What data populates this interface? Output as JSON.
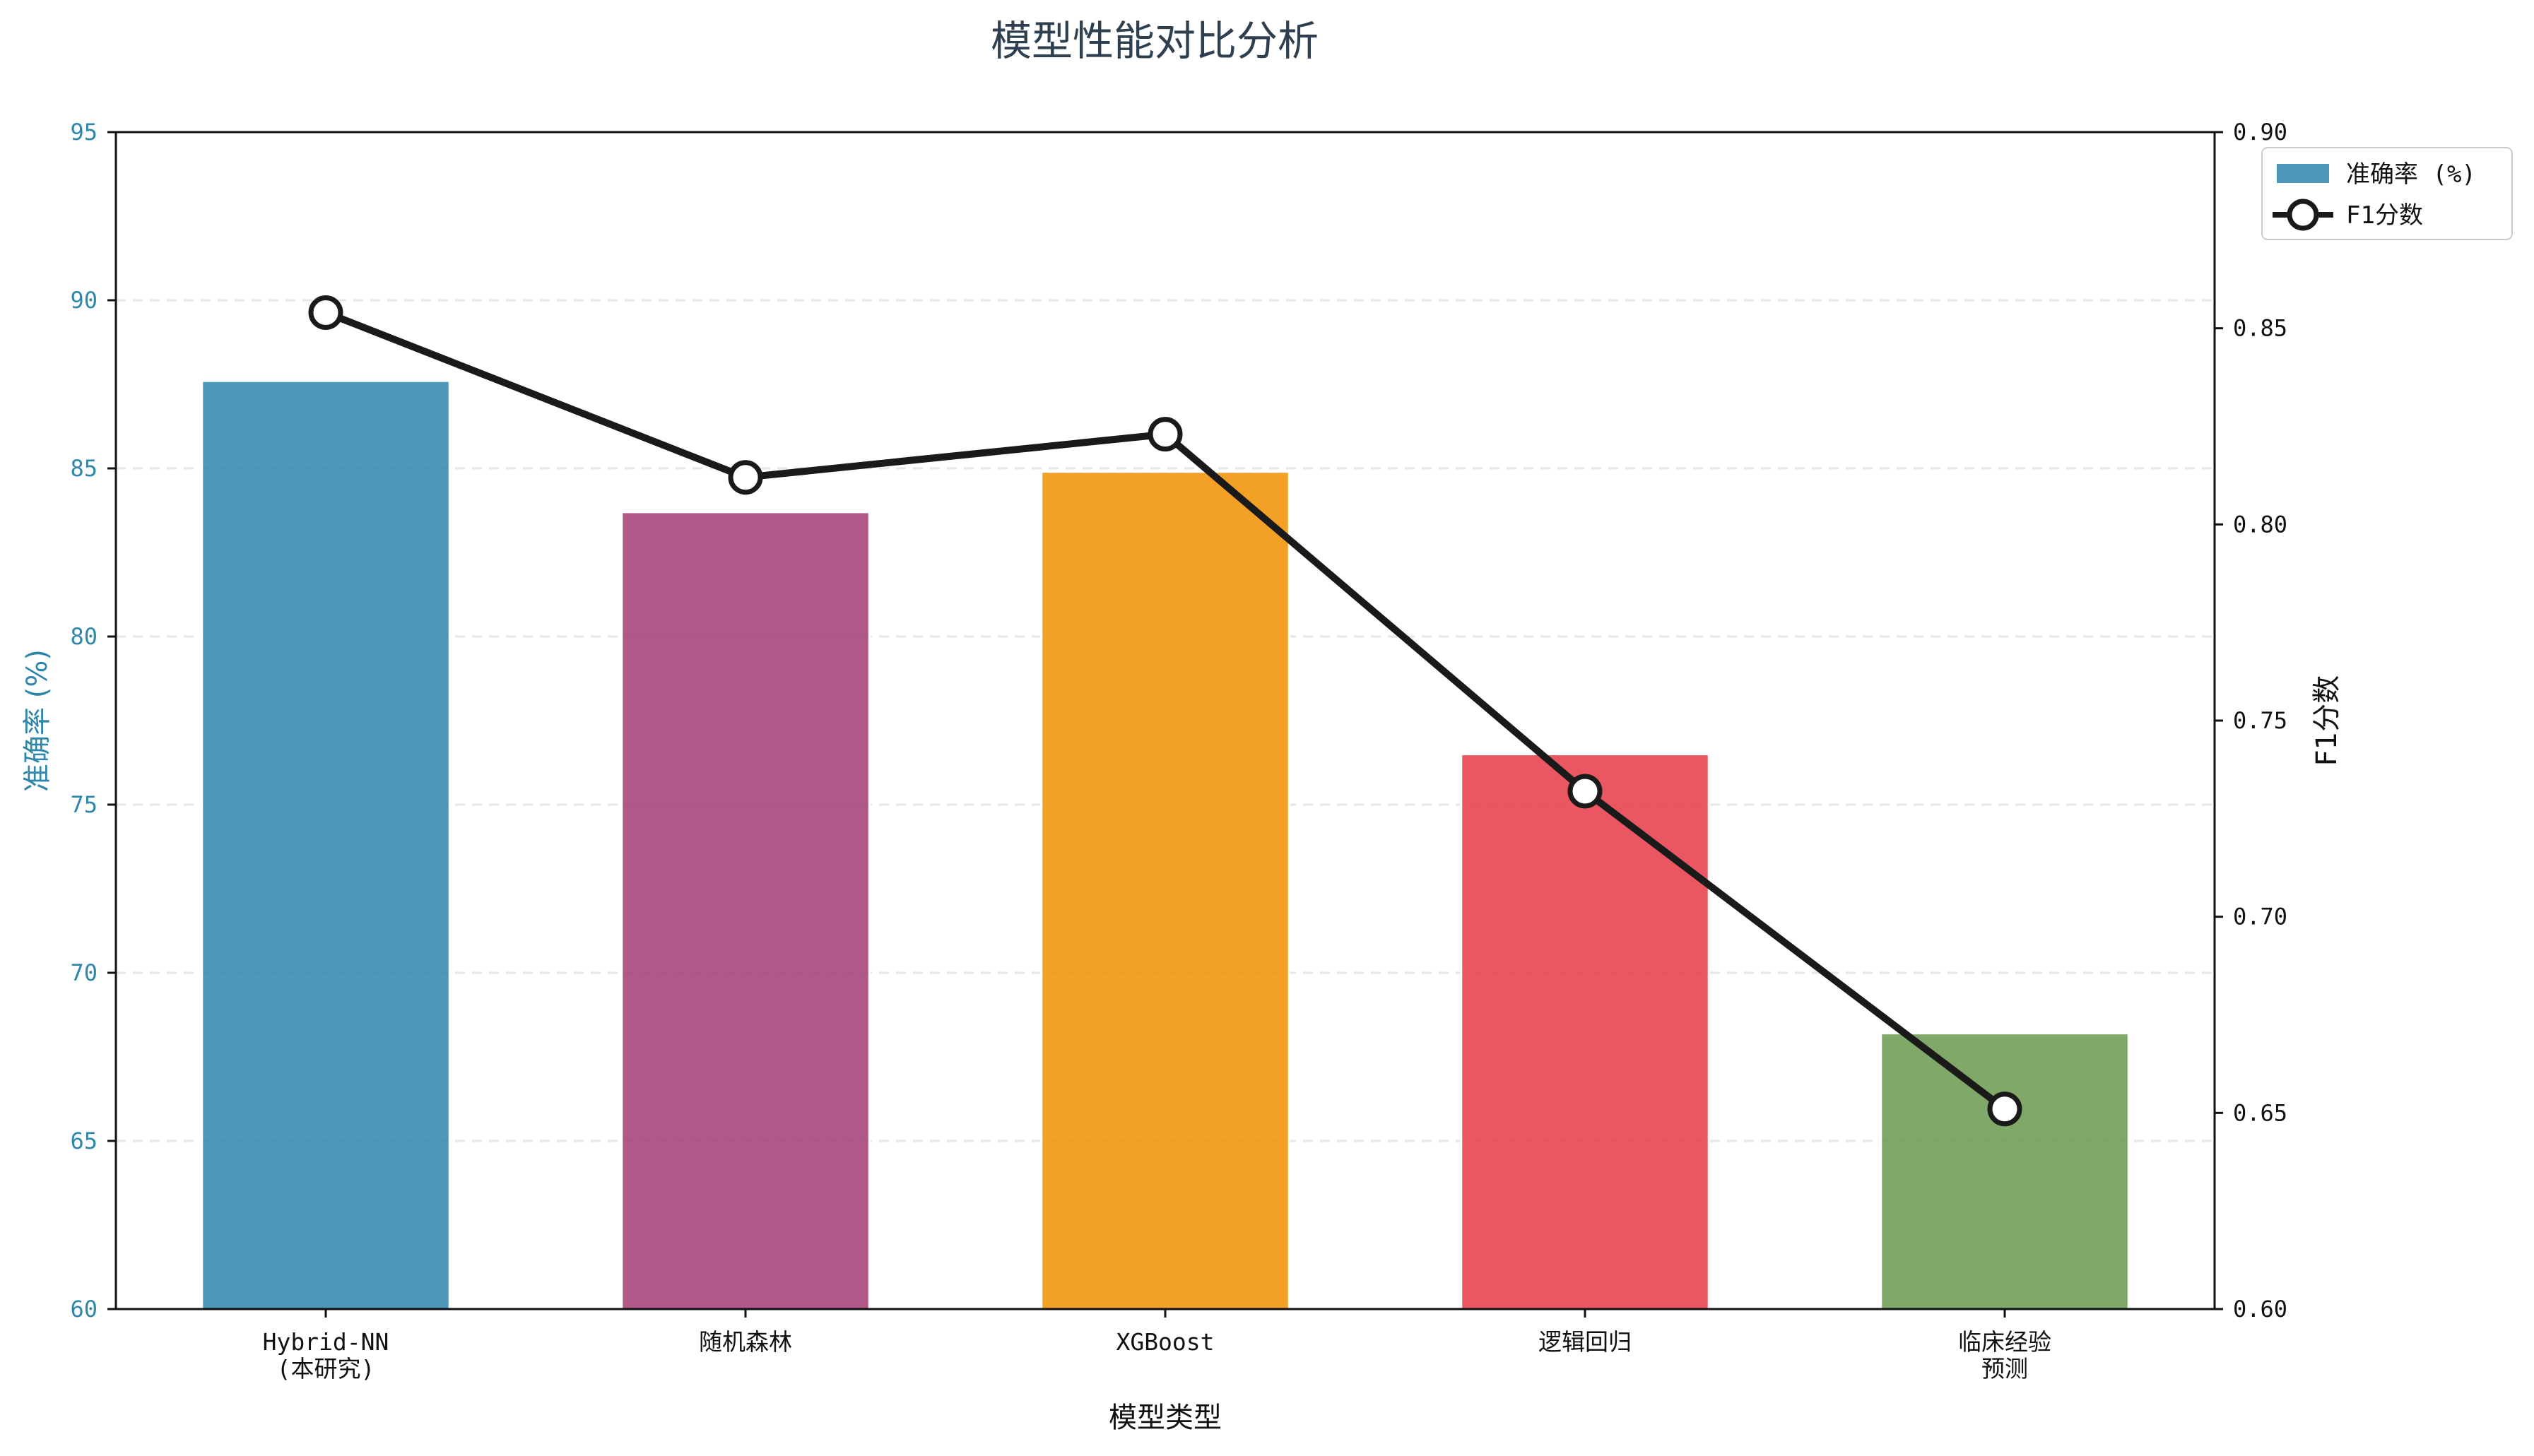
{
  "chart_data": {
    "type": "bar",
    "title": "模型性能对比分析",
    "xlabel": "模型类型",
    "ylabel": "准确率 (%)",
    "ylabel_right": "F1分数",
    "categories": [
      [
        "Hybrid-NN",
        "(本研究)"
      ],
      [
        "随机森林"
      ],
      [
        "XGBoost"
      ],
      [
        "逻辑回归"
      ],
      [
        "临床经验",
        "预测"
      ]
    ],
    "series": [
      {
        "name": "准确率 (%)",
        "type": "bar",
        "axis": "left",
        "values": [
          87.6,
          83.7,
          84.9,
          76.5,
          68.2
        ],
        "colors": [
          "#2E86AB",
          "#A23B72",
          "#F18F01",
          "#E63946",
          "#6A994E"
        ]
      },
      {
        "name": "F1分数",
        "type": "line",
        "axis": "right",
        "values": [
          0.854,
          0.812,
          0.823,
          0.732,
          0.651
        ],
        "color": "#1a1a1a"
      }
    ],
    "ylim": [
      60,
      95
    ],
    "y_ticks": [
      60,
      65,
      70,
      75,
      80,
      85,
      90,
      95
    ],
    "ylim_right": [
      0.6,
      0.9
    ],
    "y_ticks_right": [
      "0.60",
      "0.65",
      "0.70",
      "0.75",
      "0.80",
      "0.85",
      "0.90"
    ],
    "grid": "horizontal-dashed",
    "legend_position": "top-right-outside",
    "left_axis_color": "#2E86AB"
  }
}
